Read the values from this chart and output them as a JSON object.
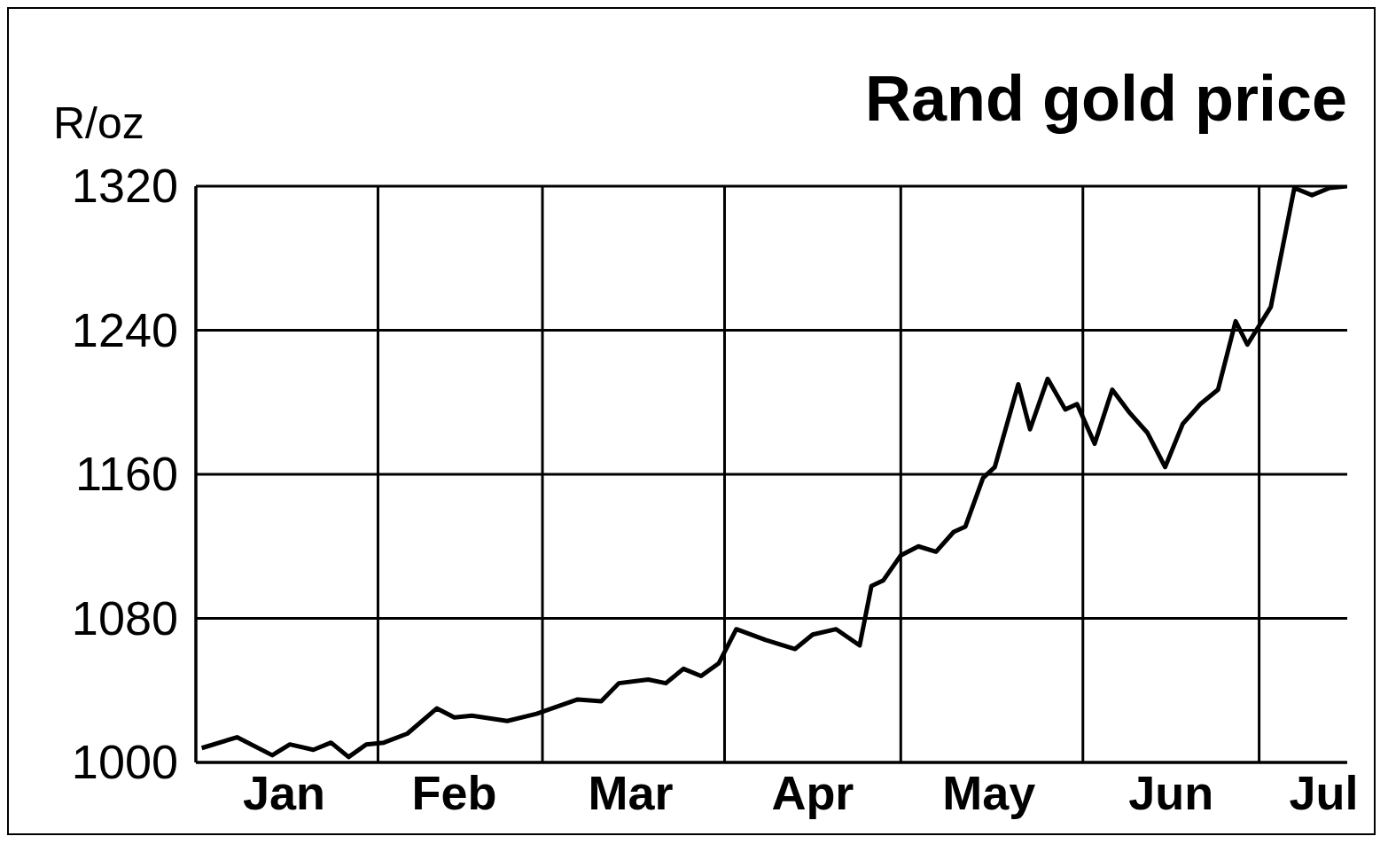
{
  "chart_data": {
    "type": "line",
    "title": "Rand gold price",
    "ylabel": "R/oz",
    "x": [
      "--01-02",
      "--01-08",
      "--01-14",
      "--01-17",
      "--01-21",
      "--01-24",
      "--01-27",
      "--01-30",
      "--02-02",
      "--02-06",
      "--02-11",
      "--02-14",
      "--02-17",
      "--02-23",
      "--02-28",
      "--03-07",
      "--03-11",
      "--03-14",
      "--03-19",
      "--03-22",
      "--03-25",
      "--03-28",
      "--03-31",
      "--04-03",
      "--04-08",
      "--04-13",
      "--04-16",
      "--04-20",
      "--04-24",
      "--04-26",
      "--04-28",
      "--05-01",
      "--05-04",
      "--05-07",
      "--05-10",
      "--05-12",
      "--05-15",
      "--05-17",
      "--05-21",
      "--05-23",
      "--05-26",
      "--05-29",
      "--05-31",
      "--06-03",
      "--06-06",
      "--06-09",
      "--06-12",
      "--06-15",
      "--06-18",
      "--06-21",
      "--06-24",
      "--06-27",
      "--06-29",
      "--07-03",
      "--07-07",
      "--07-10",
      "--07-13",
      "--07-16"
    ],
    "series": [
      {
        "color": "#000000",
        "values": [
          1008,
          1014,
          1004,
          1010,
          1007,
          1011,
          1003,
          1010,
          1011,
          1016,
          1030,
          1025,
          1026,
          1023,
          1027,
          1035,
          1034,
          1044,
          1046,
          1044,
          1052,
          1048,
          1055,
          1074,
          1068,
          1063,
          1071,
          1074,
          1065,
          1098,
          1101,
          1115,
          1120,
          1117,
          1128,
          1131,
          1158,
          1164,
          1210,
          1185,
          1213,
          1196,
          1199,
          1177,
          1207,
          1194,
          1183,
          1164,
          1188,
          1199,
          1207,
          1245,
          1232,
          1253,
          1319,
          1315,
          1319,
          1320
        ]
      }
    ],
    "xlim": [
      "--01-01",
      "--07-16"
    ],
    "xticks": [
      {
        "value": "--01-01",
        "label": null
      },
      {
        "value": "--01-16",
        "label": "Jan"
      },
      {
        "value": "--02-01",
        "label": null
      },
      {
        "value": "--02-14",
        "label": "Feb"
      },
      {
        "value": "--03-01",
        "label": null
      },
      {
        "value": "--03-16",
        "label": "Mar"
      },
      {
        "value": "--04-01",
        "label": null
      },
      {
        "value": "--04-16",
        "label": "Apr"
      },
      {
        "value": "--05-01",
        "label": null
      },
      {
        "value": "--05-16",
        "label": "May"
      },
      {
        "value": "--06-01",
        "label": null
      },
      {
        "value": "--06-16",
        "label": "Jun"
      },
      {
        "value": "--07-01",
        "label": null
      },
      {
        "value": "--07-12",
        "label": "Jul"
      }
    ],
    "ylim": [
      1000,
      1320
    ],
    "yticks": [
      1000,
      1080,
      1160,
      1240,
      1320
    ],
    "grid": true,
    "line_style": "solid",
    "marker": "none"
  }
}
